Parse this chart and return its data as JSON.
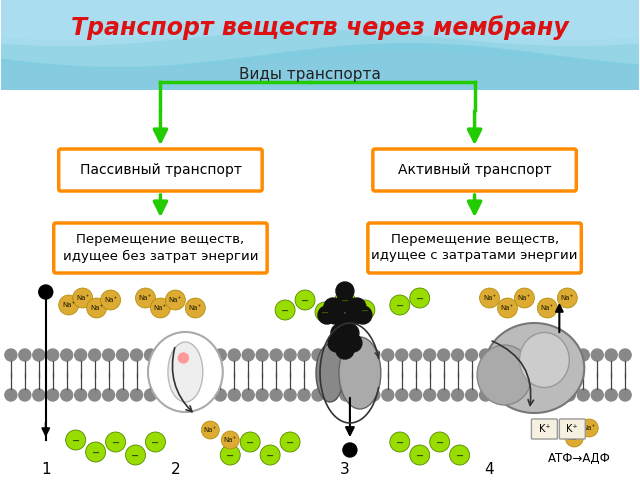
{
  "title": "Транспорт веществ через мембрану",
  "title_color": "#DD1111",
  "node_center": "Виды транспорта",
  "node_left": "Пассивный транспорт",
  "node_right": "Активный транспорт",
  "node_bottom_left": "Перемещение веществ,\nидущее без затрат энергии",
  "node_bottom_right": "Перемещение веществ,\nидущее с затратами энергии",
  "box_edge_color": "#FF8C00",
  "box_face_color": "#FFFFFF",
  "arrow_color": "#22CC00",
  "bg_color1": "#C8E8F0",
  "bg_color2": "#A0D4E8",
  "bg_color3": "#78C0DC",
  "label_atf": "АТФ→АДФ",
  "label_kplus1": "K⁺",
  "label_kplus2": "K⁺",
  "membrane_color": "#888888",
  "green_ion_color": "#99DD00",
  "orange_na_color": "#DDAA33",
  "black_color": "#111111"
}
